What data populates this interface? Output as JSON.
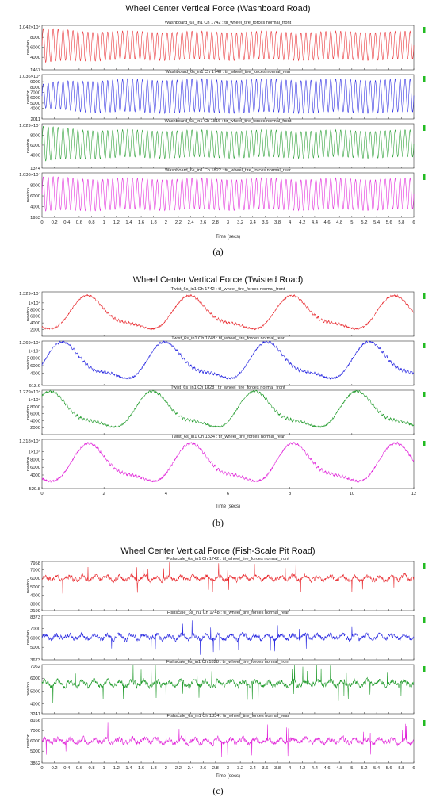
{
  "figures": [
    {
      "title": "Wheel Center Vertical Force (Washboard Road)",
      "caption": "(a)",
      "xlabel": "Time (secs)",
      "xlim": [
        0,
        6
      ],
      "xticks": [
        "0",
        "0.2",
        "0.4",
        "0.6",
        "0.8",
        "1",
        "1.2",
        "1.4",
        "1.6",
        "1.8",
        "2",
        "2.2",
        "2.4",
        "2.6",
        "2.8",
        "3",
        "3.2",
        "3.4",
        "3.6",
        "3.8",
        "4",
        "4.2",
        "4.4",
        "4.6",
        "4.8",
        "5",
        "5.2",
        "5.4",
        "5.6",
        "5.8",
        "6"
      ],
      "panels": [
        {
          "title": "Washboard_6s_in1  Ch 1742 : til_wheel_tire_forces normal_front",
          "ylabel": "newton",
          "color": "#e8262b",
          "ymax_label": "1.042×10⁴",
          "ymin_label": "1467",
          "yticks": [
            "8000",
            "6000",
            "4000"
          ],
          "ylim": [
            1467,
            10420
          ],
          "tick_values": [
            8000,
            6000,
            4000
          ],
          "signal": {
            "kind": "sine",
            "freq": 12.5,
            "center": 6300,
            "amp": 2800,
            "start_amp": 3500
          }
        },
        {
          "title": "Washboard_6s_in1  Ch 1748 : til_wheel_tire_forces normal_rear",
          "ylabel": "newton",
          "color": "#2424e0",
          "ymax_label": "1.036×10⁴",
          "ymin_label": "2011",
          "yticks": [
            "9000",
            "8000",
            "7000",
            "6000",
            "5000",
            "4000"
          ],
          "ylim": [
            2011,
            10360
          ],
          "tick_values": [
            9000,
            8000,
            7000,
            6000,
            5000,
            4000
          ],
          "signal": {
            "kind": "sine",
            "freq": 12.5,
            "center": 6300,
            "amp": 3100,
            "start_amp": 2200
          }
        },
        {
          "title": "Washboard_6s_in1  Ch 1816 : tir_wheel_tire_forces normal_front",
          "ylabel": "newton",
          "color": "#1f9a2a",
          "ymax_label": "1.029×10⁴",
          "ymin_label": "1374",
          "yticks": [
            "8000",
            "6000",
            "4000"
          ],
          "ylim": [
            1374,
            10290
          ],
          "tick_values": [
            8000,
            6000,
            4000
          ],
          "signal": {
            "kind": "sine",
            "freq": 12.5,
            "center": 6200,
            "amp": 2700,
            "start_amp": 3600
          }
        },
        {
          "title": "Washboard_6s_in1  Ch 1822 : tir_wheel_tire_forces normal_rear",
          "ylabel": "newton",
          "color": "#e020d8",
          "ymax_label": "1.036×10⁴",
          "ymin_label": "1953",
          "yticks": [
            "8000",
            "6000",
            "4000"
          ],
          "ylim": [
            1953,
            10360
          ],
          "tick_values": [
            8000,
            6000,
            4000
          ],
          "signal": {
            "kind": "sine",
            "freq": 12.5,
            "center": 6300,
            "amp": 2900,
            "start_amp": 3300
          }
        }
      ]
    },
    {
      "title": "Wheel Center Vertical Force (Twisted Road)",
      "caption": "(b)",
      "xlabel": "Time (secs)",
      "xlim": [
        0,
        12
      ],
      "xticks": [
        "0",
        "2",
        "4",
        "6",
        "8",
        "10",
        "12"
      ],
      "panels": [
        {
          "title": "Twist_6s_in1  Ch 1742 : til_wheel_tire_forces normal_front",
          "ylabel": "newton",
          "color": "#e8262b",
          "ymax_label": "1.329×10⁴",
          "ymin_label": "",
          "yticks": [
            "1×10⁴",
            "8000",
            "6000",
            "4000",
            "2000"
          ],
          "ylim": [
            0,
            13290
          ],
          "tick_values": [
            10000,
            8000,
            6000,
            4000,
            2000
          ],
          "signal": {
            "kind": "twist",
            "period": 3.3,
            "phase": 1.55,
            "center": 6300,
            "amp": 6000
          }
        },
        {
          "title": "Twist_6s_in1  Ch 1748 : til_wheel_tire_forces normal_rear",
          "ylabel": "newton",
          "color": "#2424e0",
          "ymax_label": "1.269×10⁴",
          "ymin_label": "612.6",
          "yticks": [
            "1×10⁴",
            "8000",
            "6000",
            "4000"
          ],
          "ylim": [
            612.6,
            12690
          ],
          "tick_values": [
            10000,
            8000,
            6000,
            4000
          ],
          "signal": {
            "kind": "twist",
            "period": 3.3,
            "phase": 0.75,
            "center": 6600,
            "amp": 6000
          }
        },
        {
          "title": "Twist_6s_in1  Ch 1828 : tir_wheel_tire_forces normal_front",
          "ylabel": "newton",
          "color": "#1f9a2a",
          "ymax_label": "1.279×10⁴",
          "ymin_label": "",
          "yticks": [
            "1×10⁴",
            "8000",
            "6000",
            "4000",
            "2000"
          ],
          "ylim": [
            0,
            12790
          ],
          "tick_values": [
            10000,
            8000,
            6000,
            4000,
            2000
          ],
          "signal": {
            "kind": "twist",
            "period": 3.3,
            "phase": 0.35,
            "center": 6400,
            "amp": 6200
          }
        },
        {
          "title": "Twist_6s_in1  Ch 1834 : tir_wheel_tire_forces normal_rear",
          "ylabel": "newton",
          "color": "#e020d8",
          "ymax_label": "1.318×10⁴",
          "ymin_label": "529.8",
          "yticks": [
            "1×10⁴",
            "8000",
            "6000",
            "4000"
          ],
          "ylim": [
            529.8,
            13180
          ],
          "tick_values": [
            10000,
            8000,
            6000,
            4000
          ],
          "signal": {
            "kind": "twist",
            "period": 3.3,
            "phase": 1.6,
            "center": 6400,
            "amp": 5900
          }
        }
      ]
    },
    {
      "title": "Wheel Center Vertical Force (Fish-Scale Pit Road)",
      "caption": "(c)",
      "xlabel": "Time (secs)",
      "xlim": [
        0,
        6
      ],
      "xticks": [
        "0",
        "0.2",
        "0.4",
        "0.6",
        "0.8",
        "1",
        "1.2",
        "1.4",
        "1.6",
        "1.8",
        "2",
        "2.2",
        "2.4",
        "2.6",
        "2.8",
        "3",
        "3.2",
        "3.4",
        "3.6",
        "3.8",
        "4",
        "4.2",
        "4.4",
        "4.6",
        "4.8",
        "5",
        "5.2",
        "5.4",
        "5.6",
        "5.8",
        "6"
      ],
      "panels": [
        {
          "title": "Fishscale_6s_in1  Ch 1742 : til_wheel_tire_forces normal_front",
          "ylabel": "newton",
          "color": "#e8262b",
          "ymax_label": "7958",
          "ymin_label": "2199",
          "yticks": [
            "7000",
            "6000",
            "5000",
            "4000",
            "3000"
          ],
          "ylim": [
            2199,
            7958
          ],
          "tick_values": [
            7000,
            6000,
            5000,
            4000,
            3000
          ],
          "signal": {
            "kind": "noise",
            "seed": 3,
            "center": 6000,
            "amp": 700,
            "spike": 1800
          }
        },
        {
          "title": "Fishscale_6s_in1  Ch 1748 : til_wheel_tire_forces normal_rear",
          "ylabel": "newton",
          "color": "#2424e0",
          "ymax_label": "8373",
          "ymin_label": "3673",
          "yticks": [
            "7000",
            "6000",
            "5000"
          ],
          "ylim": [
            3673,
            8373
          ],
          "tick_values": [
            7000,
            6000,
            5000
          ],
          "signal": {
            "kind": "noise",
            "seed": 7,
            "center": 6100,
            "amp": 650,
            "spike": 1600
          }
        },
        {
          "title": "Fishscale_6s_in1  Ch 1828 : tir_wheel_tire_forces normal_front",
          "ylabel": "newton",
          "color": "#1f9a2a",
          "ymax_label": "7062",
          "ymin_label": "3241",
          "yticks": [
            "7000",
            "6000",
            "5000",
            "4000"
          ],
          "ylim": [
            3241,
            7062
          ],
          "tick_values": [
            7000,
            6000,
            5000,
            4000
          ],
          "signal": {
            "kind": "noise",
            "seed": 11,
            "center": 5600,
            "amp": 550,
            "spike": 1400
          }
        },
        {
          "title": "Fishscale_6s_in1  Ch 1834 : tir_wheel_tire_forces normal_rear",
          "ylabel": "newton",
          "color": "#e020d8",
          "ymax_label": "8166",
          "ymin_label": "3862",
          "yticks": [
            "7000",
            "6000",
            "5000"
          ],
          "ylim": [
            3862,
            8166
          ],
          "tick_values": [
            7000,
            6000,
            5000
          ],
          "signal": {
            "kind": "noise",
            "seed": 17,
            "center": 6000,
            "amp": 650,
            "spike": 1500
          }
        }
      ]
    }
  ],
  "chart_data": [
    {
      "type": "line",
      "title": "Wheel Center Vertical Force (Washboard Road)",
      "xlabel": "Time (secs)",
      "ylabel": "newton",
      "xlim": [
        0,
        6
      ],
      "series": [
        {
          "name": "Washboard_6s_in1  Ch 1742 : til_wheel_tire_forces normal_front",
          "ylim": [
            1467,
            10420
          ]
        },
        {
          "name": "Washboard_6s_in1  Ch 1748 : til_wheel_tire_forces normal_rear",
          "ylim": [
            2011,
            10360
          ]
        },
        {
          "name": "Washboard_6s_in1  Ch 1816 : tir_wheel_tire_forces normal_front",
          "ylim": [
            1374,
            10290
          ]
        },
        {
          "name": "Washboard_6s_in1  Ch 1822 : tir_wheel_tire_forces normal_rear",
          "ylim": [
            1953,
            10360
          ]
        }
      ]
    },
    {
      "type": "line",
      "title": "Wheel Center Vertical Force (Twisted Road)",
      "xlabel": "Time (secs)",
      "ylabel": "newton",
      "xlim": [
        0,
        12
      ],
      "series": [
        {
          "name": "Twist_6s_in1  Ch 1742 : til_wheel_tire_forces normal_front",
          "ylim": [
            0,
            13290
          ]
        },
        {
          "name": "Twist_6s_in1  Ch 1748 : til_wheel_tire_forces normal_rear",
          "ylim": [
            612.6,
            12690
          ]
        },
        {
          "name": "Twist_6s_in1  Ch 1828 : tir_wheel_tire_forces normal_front",
          "ylim": [
            0,
            12790
          ]
        },
        {
          "name": "Twist_6s_in1  Ch 1834 : tir_wheel_tire_forces normal_rear",
          "ylim": [
            529.8,
            13180
          ]
        }
      ]
    },
    {
      "type": "line",
      "title": "Wheel Center Vertical Force (Fish-Scale Pit Road)",
      "xlabel": "Time (secs)",
      "ylabel": "newton",
      "xlim": [
        0,
        6
      ],
      "series": [
        {
          "name": "Fishscale_6s_in1  Ch 1742 : til_wheel_tire_forces normal_front",
          "ylim": [
            2199,
            7958
          ]
        },
        {
          "name": "Fishscale_6s_in1  Ch 1748 : til_wheel_tire_forces normal_rear",
          "ylim": [
            3673,
            8373
          ]
        },
        {
          "name": "Fishscale_6s_in1  Ch 1828 : tir_wheel_tire_forces normal_front",
          "ylim": [
            3241,
            7062
          ]
        },
        {
          "name": "Fishscale_6s_in1  Ch 1834 : tir_wheel_tire_forces normal_rear",
          "ylim": [
            3862,
            8166
          ]
        }
      ]
    }
  ]
}
